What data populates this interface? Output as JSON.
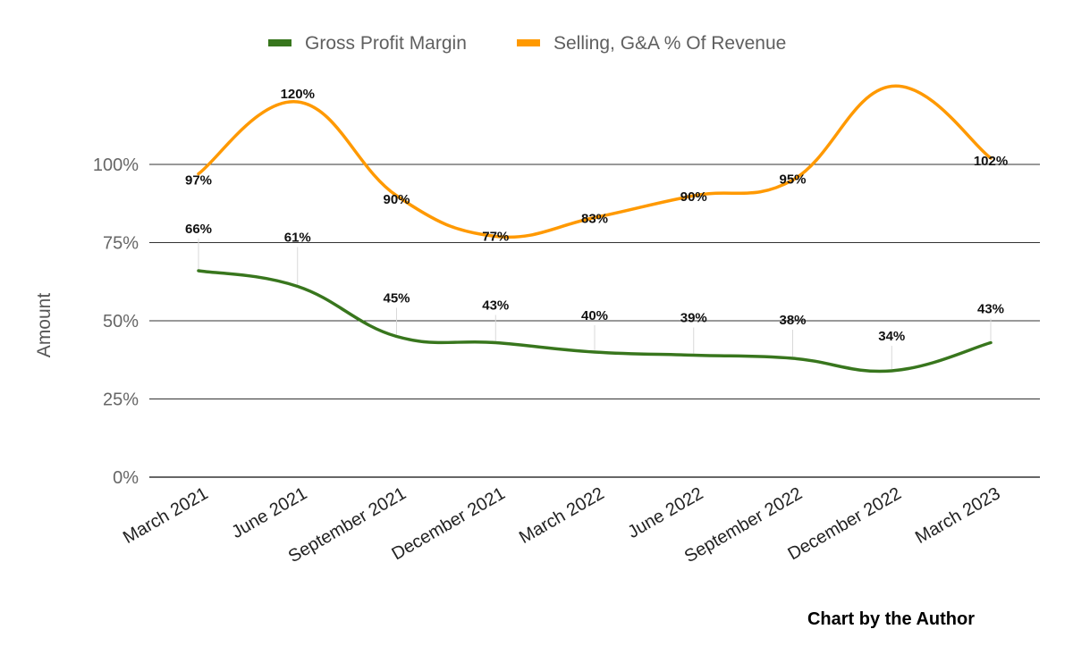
{
  "chart_data": {
    "type": "line",
    "xlabel": "",
    "ylabel": "Amount",
    "categories": [
      "March 2021",
      "June 2021",
      "September 2021",
      "December 2021",
      "March 2022",
      "June 2022",
      "September 2022",
      "December 2022",
      "March 2023"
    ],
    "ylim": [
      0,
      125
    ],
    "yticks": [
      0,
      25,
      50,
      75,
      100
    ],
    "ytick_labels": [
      "0%",
      "25%",
      "50%",
      "75%",
      "100%"
    ],
    "grid": true,
    "legend_position": "top",
    "series": [
      {
        "name": "Gross Profit Margin",
        "color": "#38761d",
        "values": [
          66,
          61,
          45,
          43,
          40,
          39,
          38,
          34,
          43
        ],
        "labels": [
          "66%",
          "61%",
          "45%",
          "43%",
          "40%",
          "39%",
          "38%",
          "34%",
          "43%"
        ]
      },
      {
        "name": "Selling, G&A % Of Revenue",
        "color": "#ff9900",
        "values": [
          97,
          120,
          90,
          77,
          83,
          90,
          95,
          125,
          102
        ],
        "labels": [
          "97%",
          "120%",
          "90%",
          "77%",
          "83%",
          "90%",
          "95%",
          "",
          "102%"
        ]
      }
    ],
    "annotation": "Chart by the Author"
  }
}
